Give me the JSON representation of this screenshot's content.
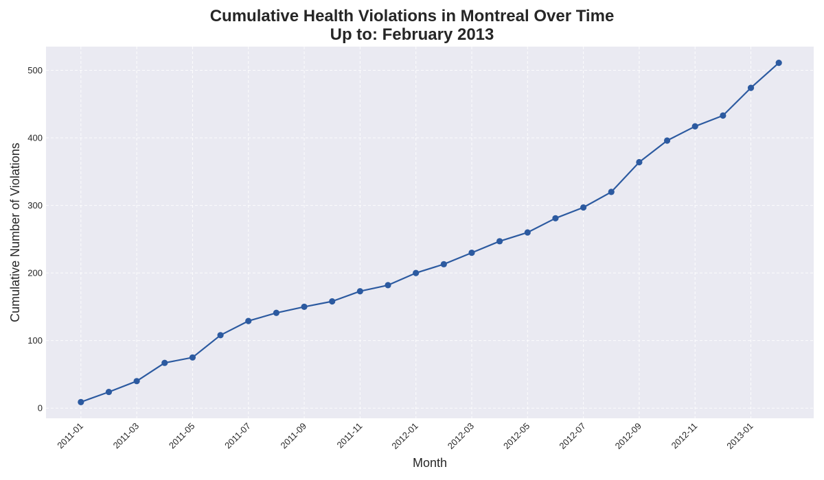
{
  "chart_data": {
    "type": "line",
    "title": "Cumulative Health Violations in Montreal Over Time",
    "subtitle": "Up to: February 2013",
    "xlabel": "Month",
    "ylabel": "Cumulative Number of Violations",
    "x": [
      "2011-01",
      "2011-02",
      "2011-03",
      "2011-04",
      "2011-05",
      "2011-06",
      "2011-07",
      "2011-08",
      "2011-09",
      "2011-10",
      "2011-11",
      "2011-12",
      "2012-01",
      "2012-02",
      "2012-03",
      "2012-04",
      "2012-05",
      "2012-06",
      "2012-07",
      "2012-08",
      "2012-09",
      "2012-10",
      "2012-11",
      "2012-12",
      "2013-01",
      "2013-02"
    ],
    "x_tick_labels": [
      "2011-01",
      "2011-03",
      "2011-05",
      "2011-07",
      "2011-09",
      "2011-11",
      "2012-01",
      "2012-03",
      "2012-05",
      "2012-07",
      "2012-09",
      "2012-11",
      "2013-01"
    ],
    "y_ticks": [
      0,
      100,
      200,
      300,
      400,
      500
    ],
    "ylim": [
      -15,
      535
    ],
    "series": [
      {
        "values": [
          9,
          24,
          40,
          67,
          75,
          108,
          129,
          141,
          150,
          158,
          173,
          182,
          200,
          213,
          230,
          247,
          260,
          281,
          297,
          320,
          364,
          396,
          417,
          433,
          474,
          511
        ],
        "color": "#2c5aa0"
      }
    ],
    "grid": true,
    "background": "#eaeaf2"
  }
}
